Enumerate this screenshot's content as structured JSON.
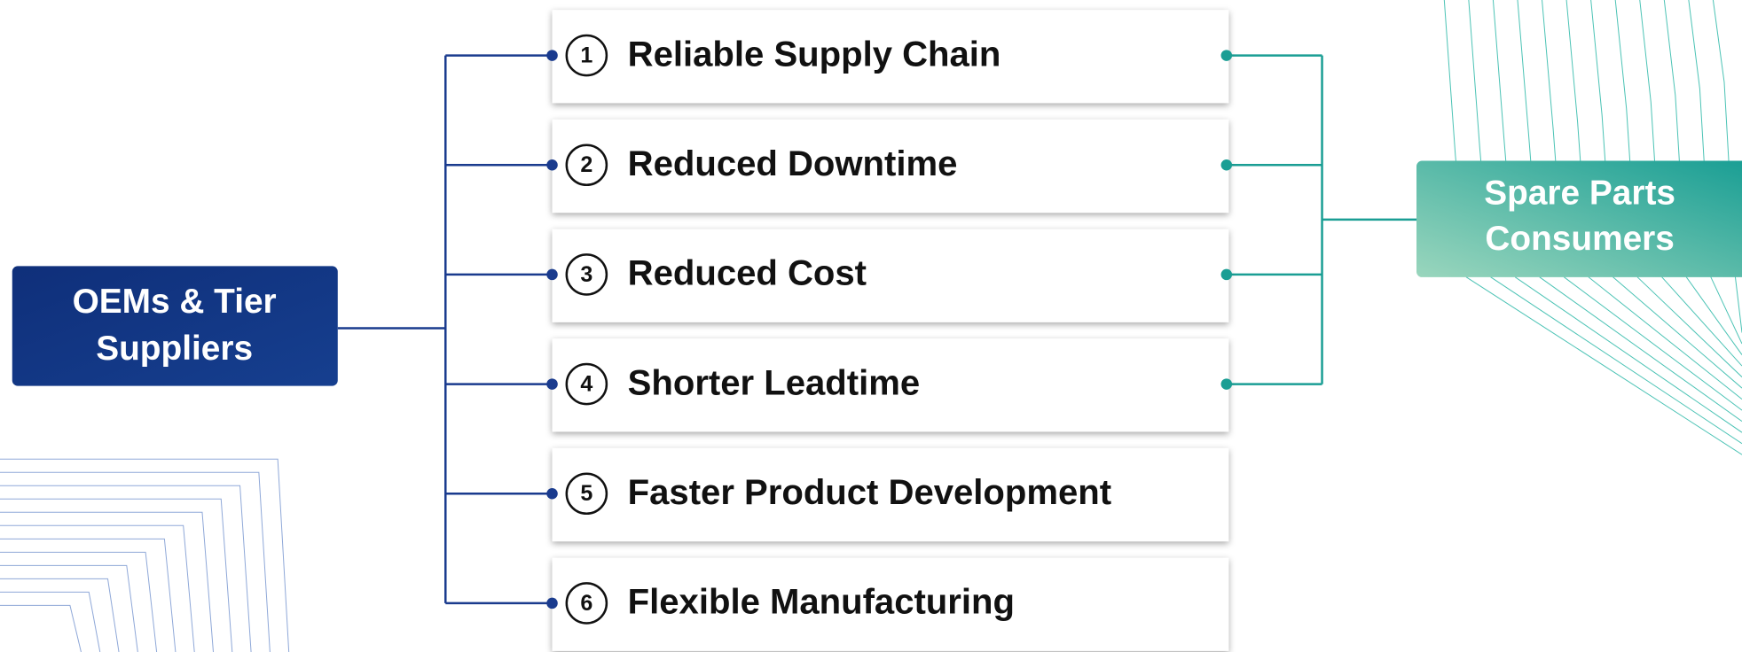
{
  "source": {
    "label_lines": [
      "OEMs & Tier",
      "Suppliers"
    ]
  },
  "target": {
    "label_lines": [
      "Spare Parts",
      "Consumers"
    ]
  },
  "benefits": [
    {
      "number": 1,
      "label": "Reliable Supply Chain",
      "to_consumers": true
    },
    {
      "number": 2,
      "label": "Reduced Downtime",
      "to_consumers": true
    },
    {
      "number": 3,
      "label": "Reduced Cost",
      "to_consumers": true
    },
    {
      "number": 4,
      "label": "Shorter Leadtime",
      "to_consumers": true
    },
    {
      "number": 5,
      "label": "Faster Product Development",
      "to_consumers": false
    },
    {
      "number": 6,
      "label": "Flexible Manufacturing",
      "to_consumers": false
    }
  ]
}
